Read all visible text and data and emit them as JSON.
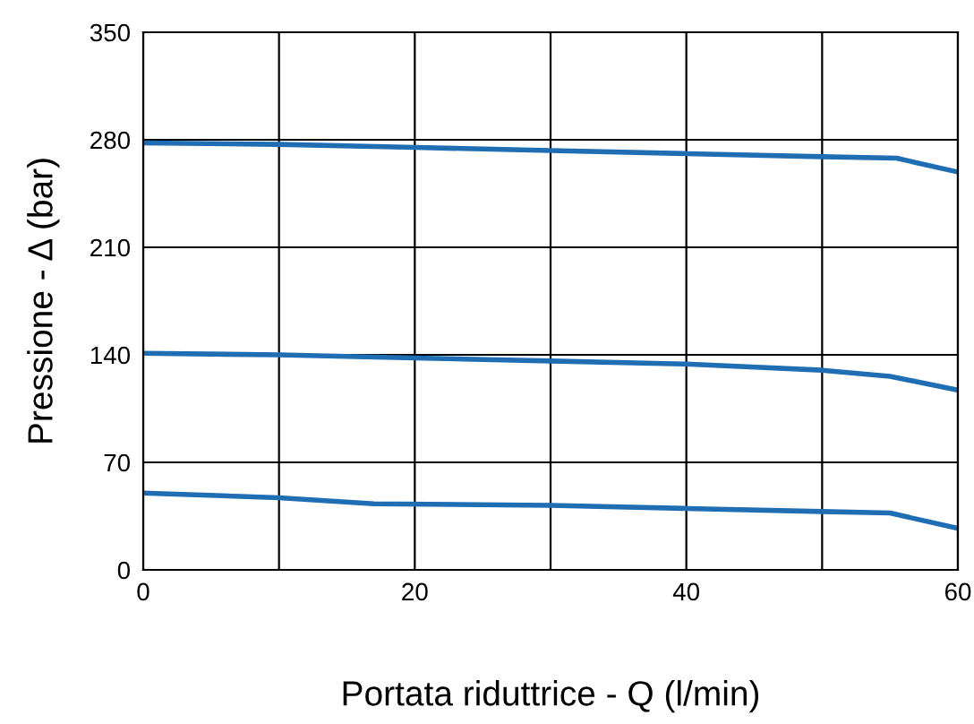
{
  "chart_data": {
    "type": "line",
    "xlabel": "Portata riduttrice - Q (l/min)",
    "ylabel": "Pressione - Δ (bar)",
    "series": [
      {
        "color": "#1f6db3",
        "x": [
          0,
          10,
          20,
          30,
          40,
          50,
          55.5,
          60
        ],
        "values": [
          278,
          277,
          275,
          273,
          271,
          269,
          268,
          259
        ]
      },
      {
        "color": "#1f6db3",
        "x": [
          0,
          10,
          20,
          30,
          40,
          50,
          55,
          60
        ],
        "values": [
          141,
          140,
          138,
          136,
          134,
          130,
          126,
          117
        ]
      },
      {
        "color": "#1f6db3",
        "x": [
          0,
          10,
          17,
          30,
          40,
          50,
          55,
          60
        ],
        "values": [
          50,
          47,
          43,
          42,
          40,
          38,
          37,
          27
        ]
      }
    ],
    "xlim": [
      0,
      60
    ],
    "ylim": [
      0,
      350
    ],
    "xticks": [
      0,
      {
        "value": 10,
        "label": null
      },
      20,
      {
        "value": 30,
        "label": null
      },
      40,
      {
        "value": 50,
        "label": null
      },
      60
    ],
    "yticks": [
      0,
      70,
      140,
      210,
      280,
      350
    ],
    "grid": true,
    "marker": "none",
    "line_style": "solid"
  }
}
